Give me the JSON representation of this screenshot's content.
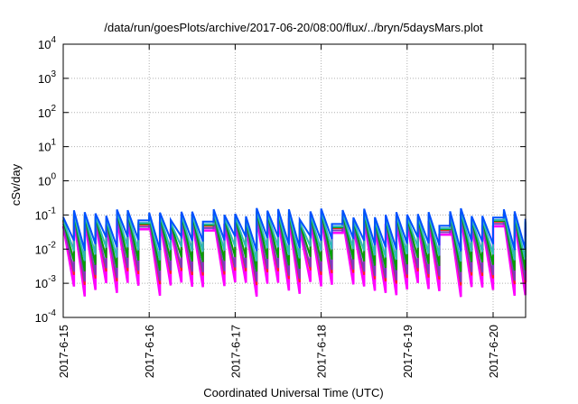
{
  "chart_data": {
    "type": "line",
    "title": "/data/run/goesPlots/archive/2017-06-20/08:00/flux/../bryn/5daysMars.plot",
    "xlabel": "Coordinated Universal Time (UTC)",
    "ylabel": "cSv/day",
    "yscale": "log",
    "ylim": [
      0.0001,
      10000
    ],
    "y_ticks": [
      {
        "base": "10",
        "exp": "-4"
      },
      {
        "base": "10",
        "exp": "-3"
      },
      {
        "base": "10",
        "exp": "-2"
      },
      {
        "base": "10",
        "exp": "-1"
      },
      {
        "base": "10",
        "exp": "0"
      },
      {
        "base": "10",
        "exp": "1"
      },
      {
        "base": "10",
        "exp": "2"
      },
      {
        "base": "10",
        "exp": "3"
      },
      {
        "base": "10",
        "exp": "4"
      }
    ],
    "xlim": [
      "2017-06-15",
      "2017-06-20 08:00"
    ],
    "x_ticks": [
      "2017-6-15",
      "2017-6-16",
      "2017-6-17",
      "2017-6-18",
      "2017-6-19",
      "2017-6-20"
    ],
    "grid": true,
    "legend": "none",
    "pattern": {
      "cycles_per_day": 8,
      "gap_days": [
        0.85,
        1.6,
        3.1,
        4.35,
        4.95
      ],
      "peak_value_range": [
        0.07,
        0.16
      ],
      "trough_value_range": [
        0.0007,
        0.002
      ]
    },
    "series": [
      {
        "color": "#ff00ff",
        "peak_factor": 0.55,
        "trough_factor": 0.55
      },
      {
        "color": "#ff2020",
        "peak_factor": 0.75,
        "trough_factor": 1.2
      },
      {
        "color": "#7a3db8",
        "peak_factor": 0.65,
        "trough_factor": 1.5
      },
      {
        "color": "#00a000",
        "peak_factor": 0.8,
        "trough_factor": 3.0
      },
      {
        "color": "#2fb8b8",
        "peak_factor": 0.85,
        "trough_factor": 6.0
      },
      {
        "color": "#0050ff",
        "peak_factor": 1.0,
        "trough_factor": 12.0
      }
    ]
  }
}
